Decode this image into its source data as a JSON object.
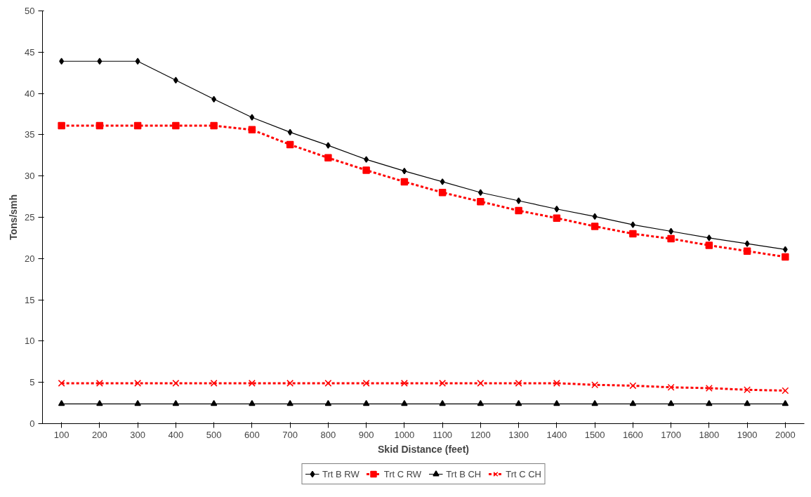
{
  "chart_data": {
    "type": "line",
    "xlabel": "Skid Distance (feet)",
    "ylabel": "Tons/smh",
    "categories": [
      "100",
      "200",
      "300",
      "400",
      "500",
      "600",
      "700",
      "800",
      "900",
      "1000",
      "1100",
      "1200",
      "1300",
      "1400",
      "1500",
      "1600",
      "1700",
      "1800",
      "1900",
      "2000"
    ],
    "ylim": [
      0,
      50
    ],
    "yticks": [
      0,
      5,
      10,
      15,
      20,
      25,
      30,
      35,
      40,
      45,
      50
    ],
    "grid": false,
    "legend": "bottom",
    "series": [
      {
        "name": "Trt B RW",
        "color": "#000000",
        "marker": "diamond",
        "line_style": "solid",
        "values": [
          43.9,
          43.9,
          43.9,
          41.6,
          39.3,
          37.1,
          35.3,
          33.7,
          32.0,
          30.6,
          29.3,
          28.0,
          27.0,
          26.0,
          25.1,
          24.1,
          23.3,
          22.5,
          21.8,
          21.1
        ]
      },
      {
        "name": "Trt C RW",
        "color": "#ff0000",
        "marker": "square",
        "line_style": "dashed",
        "values": [
          36.1,
          36.1,
          36.1,
          36.1,
          36.1,
          35.6,
          33.8,
          32.2,
          30.7,
          29.3,
          28.0,
          26.9,
          25.8,
          24.9,
          23.9,
          23.0,
          22.4,
          21.6,
          20.9,
          20.2
        ]
      },
      {
        "name": "Trt B CH",
        "color": "#000000",
        "marker": "triangle",
        "line_style": "solid",
        "values": [
          2.4,
          2.4,
          2.4,
          2.4,
          2.4,
          2.4,
          2.4,
          2.4,
          2.4,
          2.4,
          2.4,
          2.4,
          2.4,
          2.4,
          2.4,
          2.4,
          2.4,
          2.4,
          2.4,
          2.4
        ]
      },
      {
        "name": "Trt C CH",
        "color": "#ff0000",
        "marker": "cross",
        "line_style": "dashed",
        "values": [
          4.9,
          4.9,
          4.9,
          4.9,
          4.9,
          4.9,
          4.9,
          4.9,
          4.9,
          4.9,
          4.9,
          4.9,
          4.9,
          4.9,
          4.7,
          4.6,
          4.4,
          4.3,
          4.1,
          4.0
        ]
      }
    ]
  }
}
